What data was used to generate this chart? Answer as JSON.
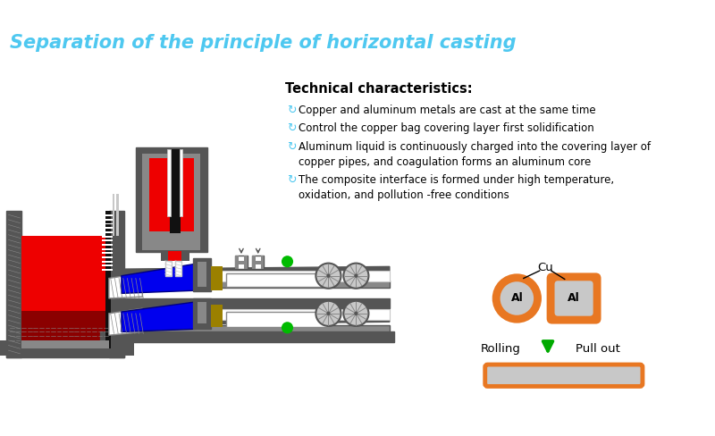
{
  "title": "Separation of the principle of horizontal casting",
  "title_color": "#4EC8F0",
  "title_fontsize": 15,
  "tech_header": "Technical characteristics:",
  "bullets": [
    "Copper and aluminum metals are cast at the same time",
    "Control the copper bag covering layer first solidification",
    "Aluminum liquid is continuously charged into the covering layer of\ncopper pipes, and coagulation forms an aluminum core",
    "The composite interface is formed under high temperature,\noxidation, and pollution -free conditions"
  ],
  "bullet_icon_color": "#4EC8F0",
  "orange": "#E87722",
  "green": "#00BB00",
  "gray_light": "#C8C8C8",
  "gray_mid": "#888888",
  "gray_dark": "#555555",
  "red_bright": "#EE0000",
  "red_dark": "#8B0000",
  "blue": "#0000EE",
  "black": "#111111",
  "white": "#FFFFFF",
  "gold": "#9B8000",
  "bg": "#FFFFFF"
}
